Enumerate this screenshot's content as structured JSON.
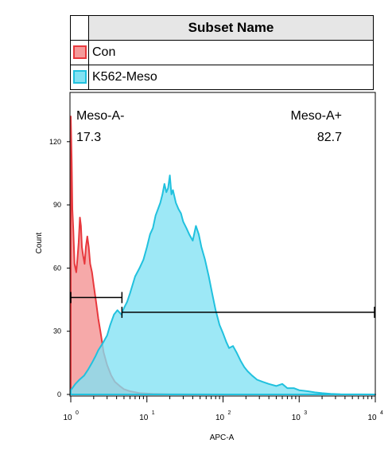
{
  "legend": {
    "header": "Subset Name",
    "entries": [
      {
        "name": "Con",
        "fill": "#f59a9a",
        "stroke": "#e8383d"
      },
      {
        "name": "K562-Meso",
        "fill": "#82e2f3",
        "stroke": "#21c1de"
      }
    ]
  },
  "chart_data": {
    "type": "area",
    "xlabel": "APC-A",
    "ylabel": "Count",
    "x_scale": "log",
    "xlim": [
      1,
      10000
    ],
    "ylim": [
      0,
      143
    ],
    "x_ticks": [
      {
        "value": 1,
        "base": "10",
        "exp": "0"
      },
      {
        "value": 10,
        "base": "10",
        "exp": "1"
      },
      {
        "value": 100,
        "base": "10",
        "exp": "2"
      },
      {
        "value": 1000,
        "base": "10",
        "exp": "3"
      },
      {
        "value": 10000,
        "base": "10",
        "exp": "4"
      }
    ],
    "y_ticks": [
      0,
      30,
      60,
      90,
      120
    ],
    "grid": false,
    "series": [
      {
        "name": "Con",
        "fill": "#f59a9a",
        "stroke": "#e8383d",
        "points": [
          [
            1.0,
            0
          ],
          [
            1.0,
            132
          ],
          [
            1.03,
            110
          ],
          [
            1.05,
            88
          ],
          [
            1.08,
            78
          ],
          [
            1.12,
            62
          ],
          [
            1.18,
            58
          ],
          [
            1.22,
            64
          ],
          [
            1.27,
            72
          ],
          [
            1.32,
            84
          ],
          [
            1.36,
            80
          ],
          [
            1.4,
            70
          ],
          [
            1.45,
            66
          ],
          [
            1.52,
            62
          ],
          [
            1.58,
            70
          ],
          [
            1.65,
            75
          ],
          [
            1.72,
            70
          ],
          [
            1.8,
            62
          ],
          [
            1.9,
            58
          ],
          [
            2.0,
            52
          ],
          [
            2.15,
            44
          ],
          [
            2.3,
            36
          ],
          [
            2.5,
            28
          ],
          [
            2.7,
            20
          ],
          [
            3.0,
            14
          ],
          [
            3.4,
            9
          ],
          [
            3.8,
            6
          ],
          [
            4.4,
            4
          ],
          [
            5.0,
            2.5
          ],
          [
            6.0,
            1.5
          ],
          [
            8.0,
            0.6
          ],
          [
            12.0,
            0.3
          ],
          [
            20.0,
            0.1
          ],
          [
            40.0,
            0.05
          ],
          [
            100.0,
            0
          ],
          [
            10000.0,
            0
          ]
        ]
      },
      {
        "name": "K562-Meso",
        "fill": "#82e2f3",
        "stroke": "#21c1de",
        "points": [
          [
            1.0,
            0
          ],
          [
            1.0,
            2
          ],
          [
            1.15,
            5
          ],
          [
            1.3,
            7
          ],
          [
            1.5,
            9
          ],
          [
            1.7,
            12
          ],
          [
            1.9,
            15
          ],
          [
            2.1,
            18
          ],
          [
            2.3,
            21
          ],
          [
            2.6,
            24
          ],
          [
            3.0,
            28
          ],
          [
            3.3,
            33
          ],
          [
            3.7,
            38
          ],
          [
            4.1,
            40
          ],
          [
            4.6,
            38
          ],
          [
            5.0,
            41
          ],
          [
            5.5,
            44
          ],
          [
            6.0,
            48
          ],
          [
            7.0,
            56
          ],
          [
            8.0,
            60
          ],
          [
            9.0,
            64
          ],
          [
            10.0,
            70
          ],
          [
            11.0,
            76
          ],
          [
            12.0,
            79
          ],
          [
            13.0,
            85
          ],
          [
            14.0,
            88
          ],
          [
            15.0,
            91
          ],
          [
            16.0,
            95
          ],
          [
            17.0,
            100
          ],
          [
            18.0,
            96
          ],
          [
            19.0,
            98
          ],
          [
            20.0,
            104
          ],
          [
            21.0,
            95
          ],
          [
            22.0,
            97
          ],
          [
            24.0,
            91
          ],
          [
            26.0,
            88
          ],
          [
            28.0,
            86
          ],
          [
            30.0,
            82
          ],
          [
            33.0,
            79
          ],
          [
            36.0,
            76
          ],
          [
            40.0,
            73
          ],
          [
            44.0,
            80
          ],
          [
            48.0,
            76
          ],
          [
            52.0,
            70
          ],
          [
            58.0,
            64
          ],
          [
            65.0,
            56
          ],
          [
            72.0,
            48
          ],
          [
            80.0,
            40
          ],
          [
            90.0,
            33
          ],
          [
            100.0,
            29
          ],
          [
            110.0,
            25
          ],
          [
            120.0,
            22
          ],
          [
            135.0,
            23
          ],
          [
            150.0,
            20
          ],
          [
            170.0,
            16
          ],
          [
            190.0,
            13
          ],
          [
            210.0,
            11
          ],
          [
            240.0,
            9
          ],
          [
            280.0,
            7
          ],
          [
            330.0,
            6
          ],
          [
            400.0,
            5
          ],
          [
            500.0,
            4
          ],
          [
            600.0,
            5
          ],
          [
            700.0,
            3
          ],
          [
            850.0,
            3
          ],
          [
            1000.0,
            2
          ],
          [
            1300.0,
            1.5
          ],
          [
            1600.0,
            1
          ],
          [
            2000.0,
            0.6
          ],
          [
            2600.0,
            0.3
          ],
          [
            3500.0,
            0.1
          ],
          [
            10000.0,
            0
          ]
        ]
      }
    ],
    "gates": [
      {
        "name": "Meso-A-",
        "value": "17.3",
        "x_start": 1.0,
        "x_end": 4.7,
        "y": 46
      },
      {
        "name": "Meso-A+",
        "value": "82.7",
        "x_start": 4.7,
        "x_end": 10000,
        "y": 39
      }
    ]
  }
}
